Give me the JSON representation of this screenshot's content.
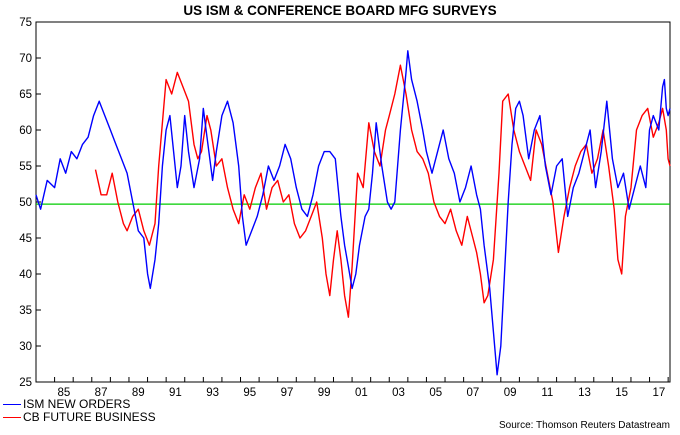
{
  "chart_data": {
    "type": "line",
    "title": "US ISM & CONFERENCE BOARD MFG SURVEYS",
    "source": "Source: Thomson Reuters Datastream",
    "xlim": [
      1984.0,
      2018.1
    ],
    "ylim": [
      25,
      75
    ],
    "y_ticks": [
      25,
      30,
      35,
      40,
      45,
      50,
      55,
      60,
      65,
      70,
      75
    ],
    "x_tick_labels": [
      "85",
      "87",
      "89",
      "91",
      "93",
      "95",
      "97",
      "99",
      "01",
      "03",
      "05",
      "07",
      "09",
      "11",
      "13",
      "15",
      "17"
    ],
    "reference_line": {
      "y": 49.7,
      "color": "#00cc00"
    },
    "series": [
      {
        "name": "ISM NEW ORDERS",
        "color": "#0000ff",
        "points": [
          [
            1984.0,
            51
          ],
          [
            1984.25,
            49
          ],
          [
            1984.6,
            53
          ],
          [
            1985.0,
            52
          ],
          [
            1985.3,
            56
          ],
          [
            1985.6,
            54
          ],
          [
            1985.9,
            57
          ],
          [
            1986.2,
            56
          ],
          [
            1986.5,
            58
          ],
          [
            1986.8,
            59
          ],
          [
            1987.1,
            62
          ],
          [
            1987.4,
            64
          ],
          [
            1987.7,
            62
          ],
          [
            1988.0,
            60
          ],
          [
            1988.3,
            58
          ],
          [
            1988.6,
            56
          ],
          [
            1988.9,
            54
          ],
          [
            1989.2,
            50
          ],
          [
            1989.5,
            46
          ],
          [
            1989.8,
            45
          ],
          [
            1990.0,
            40
          ],
          [
            1990.15,
            38
          ],
          [
            1990.4,
            42
          ],
          [
            1990.6,
            47
          ],
          [
            1990.8,
            55
          ],
          [
            1991.0,
            60
          ],
          [
            1991.2,
            62
          ],
          [
            1991.4,
            57
          ],
          [
            1991.6,
            52
          ],
          [
            1991.8,
            55
          ],
          [
            1992.0,
            62
          ],
          [
            1992.2,
            57
          ],
          [
            1992.5,
            52
          ],
          [
            1992.8,
            56
          ],
          [
            1993.0,
            63
          ],
          [
            1993.2,
            59
          ],
          [
            1993.5,
            53
          ],
          [
            1993.7,
            57
          ],
          [
            1994.0,
            62
          ],
          [
            1994.3,
            64
          ],
          [
            1994.6,
            61
          ],
          [
            1994.9,
            55
          ],
          [
            1995.1,
            48
          ],
          [
            1995.3,
            44
          ],
          [
            1995.6,
            46
          ],
          [
            1995.9,
            48
          ],
          [
            1996.2,
            51
          ],
          [
            1996.5,
            55
          ],
          [
            1996.8,
            53
          ],
          [
            1997.1,
            55
          ],
          [
            1997.4,
            58
          ],
          [
            1997.7,
            56
          ],
          [
            1998.0,
            52
          ],
          [
            1998.3,
            49
          ],
          [
            1998.6,
            48
          ],
          [
            1998.9,
            51
          ],
          [
            1999.2,
            55
          ],
          [
            1999.5,
            57
          ],
          [
            1999.8,
            57
          ],
          [
            2000.1,
            56
          ],
          [
            2000.4,
            48
          ],
          [
            2000.6,
            44
          ],
          [
            2000.8,
            41
          ],
          [
            2001.0,
            38
          ],
          [
            2001.2,
            40
          ],
          [
            2001.4,
            44
          ],
          [
            2001.7,
            48
          ],
          [
            2001.9,
            49
          ],
          [
            2002.1,
            54
          ],
          [
            2002.3,
            61
          ],
          [
            2002.6,
            55
          ],
          [
            2002.9,
            50
          ],
          [
            2003.1,
            49
          ],
          [
            2003.3,
            50
          ],
          [
            2003.6,
            60
          ],
          [
            2003.9,
            68
          ],
          [
            2004.0,
            71
          ],
          [
            2004.2,
            67
          ],
          [
            2004.5,
            64
          ],
          [
            2004.8,
            60
          ],
          [
            2005.0,
            57
          ],
          [
            2005.3,
            54
          ],
          [
            2005.6,
            57
          ],
          [
            2005.9,
            60
          ],
          [
            2006.2,
            56
          ],
          [
            2006.5,
            54
          ],
          [
            2006.8,
            50
          ],
          [
            2007.1,
            52
          ],
          [
            2007.4,
            55
          ],
          [
            2007.7,
            51
          ],
          [
            2007.9,
            49
          ],
          [
            2008.1,
            44
          ],
          [
            2008.4,
            38
          ],
          [
            2008.6,
            32
          ],
          [
            2008.8,
            26
          ],
          [
            2009.0,
            30
          ],
          [
            2009.2,
            40
          ],
          [
            2009.4,
            50
          ],
          [
            2009.6,
            58
          ],
          [
            2009.8,
            63
          ],
          [
            2010.0,
            64
          ],
          [
            2010.2,
            62
          ],
          [
            2010.5,
            56
          ],
          [
            2010.8,
            60
          ],
          [
            2011.1,
            62
          ],
          [
            2011.4,
            55
          ],
          [
            2011.7,
            51
          ],
          [
            2012.0,
            55
          ],
          [
            2012.3,
            56
          ],
          [
            2012.6,
            48
          ],
          [
            2012.9,
            52
          ],
          [
            2013.2,
            54
          ],
          [
            2013.5,
            57
          ],
          [
            2013.8,
            60
          ],
          [
            2014.1,
            52
          ],
          [
            2014.4,
            57
          ],
          [
            2014.7,
            64
          ],
          [
            2015.0,
            56
          ],
          [
            2015.3,
            52
          ],
          [
            2015.6,
            54
          ],
          [
            2015.9,
            49
          ],
          [
            2016.2,
            52
          ],
          [
            2016.5,
            55
          ],
          [
            2016.8,
            52
          ],
          [
            2017.0,
            60
          ],
          [
            2017.2,
            62
          ],
          [
            2017.5,
            60
          ],
          [
            2017.7,
            66
          ],
          [
            2017.8,
            67
          ],
          [
            2017.9,
            63
          ],
          [
            2018.0,
            62
          ],
          [
            2018.1,
            63
          ]
        ]
      },
      {
        "name": "CB FUTURE BUSINESS",
        "color": "#ff0000",
        "points": [
          [
            1987.2,
            54.5
          ],
          [
            1987.5,
            51
          ],
          [
            1987.8,
            51
          ],
          [
            1988.1,
            54
          ],
          [
            1988.4,
            50
          ],
          [
            1988.7,
            47
          ],
          [
            1988.9,
            46
          ],
          [
            1989.2,
            48
          ],
          [
            1989.5,
            49
          ],
          [
            1989.8,
            46
          ],
          [
            1990.1,
            44
          ],
          [
            1990.4,
            47
          ],
          [
            1990.6,
            55
          ],
          [
            1990.8,
            61
          ],
          [
            1991.0,
            67
          ],
          [
            1991.3,
            65
          ],
          [
            1991.6,
            68
          ],
          [
            1991.9,
            66
          ],
          [
            1992.2,
            64
          ],
          [
            1992.5,
            58
          ],
          [
            1992.7,
            56
          ],
          [
            1992.9,
            57
          ],
          [
            1993.2,
            62
          ],
          [
            1993.4,
            60
          ],
          [
            1993.7,
            55
          ],
          [
            1994.0,
            56
          ],
          [
            1994.3,
            52
          ],
          [
            1994.6,
            49
          ],
          [
            1994.9,
            47
          ],
          [
            1995.2,
            51
          ],
          [
            1995.5,
            49
          ],
          [
            1995.8,
            52
          ],
          [
            1996.1,
            54
          ],
          [
            1996.4,
            49
          ],
          [
            1996.7,
            52
          ],
          [
            1997.0,
            53
          ],
          [
            1997.3,
            50
          ],
          [
            1997.6,
            51
          ],
          [
            1997.9,
            47
          ],
          [
            1998.2,
            45
          ],
          [
            1998.5,
            46
          ],
          [
            1998.8,
            48
          ],
          [
            1999.1,
            50
          ],
          [
            1999.4,
            45
          ],
          [
            1999.6,
            40
          ],
          [
            1999.8,
            37
          ],
          [
            2000.0,
            42
          ],
          [
            2000.2,
            46
          ],
          [
            2000.4,
            42
          ],
          [
            2000.6,
            37
          ],
          [
            2000.8,
            34
          ],
          [
            2001.0,
            41
          ],
          [
            2001.3,
            54
          ],
          [
            2001.6,
            52
          ],
          [
            2001.9,
            61
          ],
          [
            2002.2,
            57
          ],
          [
            2002.5,
            55
          ],
          [
            2002.8,
            60
          ],
          [
            2003.0,
            62
          ],
          [
            2003.3,
            65
          ],
          [
            2003.6,
            69
          ],
          [
            2003.9,
            65
          ],
          [
            2004.2,
            60
          ],
          [
            2004.5,
            57
          ],
          [
            2004.8,
            56
          ],
          [
            2005.1,
            54
          ],
          [
            2005.4,
            50
          ],
          [
            2005.7,
            48
          ],
          [
            2006.0,
            47
          ],
          [
            2006.3,
            49
          ],
          [
            2006.6,
            46
          ],
          [
            2006.9,
            44
          ],
          [
            2007.2,
            48
          ],
          [
            2007.5,
            45
          ],
          [
            2007.7,
            43
          ],
          [
            2007.9,
            40
          ],
          [
            2008.1,
            36
          ],
          [
            2008.3,
            37
          ],
          [
            2008.6,
            42
          ],
          [
            2008.9,
            54
          ],
          [
            2009.1,
            64
          ],
          [
            2009.4,
            65
          ],
          [
            2009.7,
            60
          ],
          [
            2010.0,
            57
          ],
          [
            2010.3,
            55
          ],
          [
            2010.6,
            53
          ],
          [
            2010.9,
            60
          ],
          [
            2011.2,
            58
          ],
          [
            2011.5,
            54
          ],
          [
            2011.8,
            50
          ],
          [
            2012.1,
            43
          ],
          [
            2012.4,
            48
          ],
          [
            2012.7,
            52
          ],
          [
            2013.0,
            55
          ],
          [
            2013.3,
            57
          ],
          [
            2013.6,
            58
          ],
          [
            2013.9,
            54
          ],
          [
            2014.2,
            56
          ],
          [
            2014.5,
            60
          ],
          [
            2014.8,
            55
          ],
          [
            2015.1,
            49
          ],
          [
            2015.3,
            42
          ],
          [
            2015.5,
            40
          ],
          [
            2015.7,
            48
          ],
          [
            2016.0,
            52
          ],
          [
            2016.3,
            60
          ],
          [
            2016.6,
            62
          ],
          [
            2016.9,
            63
          ],
          [
            2017.2,
            59
          ],
          [
            2017.5,
            61
          ],
          [
            2017.7,
            63
          ],
          [
            2017.9,
            60
          ],
          [
            2018.0,
            56
          ],
          [
            2018.1,
            55
          ]
        ]
      }
    ],
    "legend_position": "bottom-left"
  }
}
